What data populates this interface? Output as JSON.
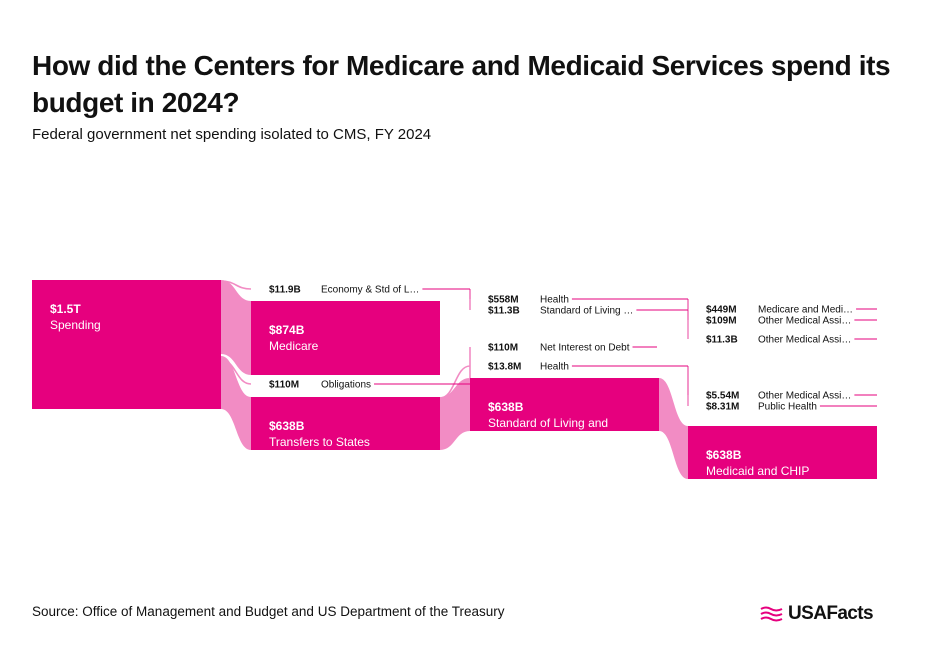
{
  "header": {
    "title": "How did the Centers for Medicare and Medicaid Services spend its budget in 2024?",
    "subtitle": "Federal government net spending isolated to CMS, FY 2024"
  },
  "footer": {
    "source": "Source: Office of Management and Budget and US Department of the Treasury",
    "logo_text": "USAFacts"
  },
  "colors": {
    "node": "#e6007e",
    "link": "#f28cc4",
    "leader": "#e6007e",
    "text": "#111111"
  },
  "chart_data": {
    "type": "sankey",
    "title": "How did the Centers for Medicare and Medicaid Services spend its budget in 2024?",
    "subtitle": "Federal government net spending isolated to CMS, FY 2024",
    "nodes": [
      {
        "id": "spending",
        "value_label": "$1.5T",
        "name": "Spending",
        "value_billions": 1500,
        "level": 0
      },
      {
        "id": "econ",
        "value_label": "$11.9B",
        "name": "Economy & Std of L…",
        "value_billions": 11.9,
        "level": 1
      },
      {
        "id": "medicare",
        "value_label": "$874B",
        "name": "Medicare",
        "value_billions": 874,
        "level": 1
      },
      {
        "id": "obligations",
        "value_label": "$110M",
        "name": "Obligations",
        "value_billions": 0.11,
        "level": 1
      },
      {
        "id": "transfers",
        "value_label": "$638B",
        "name": "Transfers to States",
        "value_billions": 638,
        "level": 1
      },
      {
        "id": "health1",
        "value_label": "$558M",
        "name": "Health",
        "value_billions": 0.558,
        "level": 2
      },
      {
        "id": "stdliving1",
        "value_label": "$11.3B",
        "name": "Standard of Living …",
        "value_billions": 11.3,
        "level": 2
      },
      {
        "id": "interest",
        "value_label": "$110M",
        "name": "Net Interest on Debt",
        "value_billions": 0.11,
        "level": 2
      },
      {
        "id": "health2",
        "value_label": "$13.8M",
        "name": "Health",
        "value_billions": 0.0138,
        "level": 2
      },
      {
        "id": "stdliving2",
        "value_label": "$638B",
        "name": "Standard of Living and Aid to the Disadvantaged",
        "value_billions": 638,
        "level": 2
      },
      {
        "id": "medicare_medi",
        "value_label": "$449M",
        "name": "Medicare and Medi…",
        "value_billions": 0.449,
        "level": 3
      },
      {
        "id": "other_med1",
        "value_label": "$109M",
        "name": "Other Medical Assi…",
        "value_billions": 0.109,
        "level": 3
      },
      {
        "id": "other_med2",
        "value_label": "$11.3B",
        "name": "Other Medical Assi…",
        "value_billions": 11.3,
        "level": 3
      },
      {
        "id": "other_med3",
        "value_label": "$5.54M",
        "name": "Other Medical Assi…",
        "value_billions": 0.00554,
        "level": 3
      },
      {
        "id": "public_health",
        "value_label": "$8.31M",
        "name": "Public Health",
        "value_billions": 0.00831,
        "level": 3
      },
      {
        "id": "medicaid_chip",
        "value_label": "$638B",
        "name": "Medicaid and CHIP",
        "value_billions": 638,
        "level": 3
      }
    ],
    "links": [
      {
        "source": "spending",
        "target": "econ",
        "value_billions": 11.9
      },
      {
        "source": "spending",
        "target": "medicare",
        "value_billions": 874
      },
      {
        "source": "spending",
        "target": "obligations",
        "value_billions": 0.11
      },
      {
        "source": "spending",
        "target": "transfers",
        "value_billions": 638
      },
      {
        "source": "econ",
        "target": "health1",
        "value_billions": 0.558
      },
      {
        "source": "econ",
        "target": "stdliving1",
        "value_billions": 11.3
      },
      {
        "source": "obligations",
        "target": "interest",
        "value_billions": 0.11
      },
      {
        "source": "transfers",
        "target": "health2",
        "value_billions": 0.0138
      },
      {
        "source": "transfers",
        "target": "stdliving2",
        "value_billions": 638
      },
      {
        "source": "health1",
        "target": "medicare_medi",
        "value_billions": 0.449
      },
      {
        "source": "health1",
        "target": "other_med1",
        "value_billions": 0.109
      },
      {
        "source": "stdliving1",
        "target": "other_med2",
        "value_billions": 11.3
      },
      {
        "source": "health2",
        "target": "other_med3",
        "value_billions": 0.00554
      },
      {
        "source": "health2",
        "target": "public_health",
        "value_billions": 0.00831
      },
      {
        "source": "stdliving2",
        "target": "medicaid_chip",
        "value_billions": 638
      }
    ]
  }
}
